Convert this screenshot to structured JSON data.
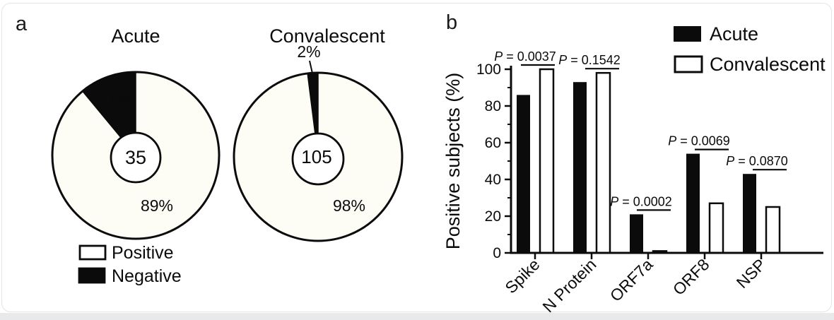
{
  "figure": {
    "panel_a_label": "a",
    "panel_b_label": "b",
    "panel_a_legend": [
      {
        "label": "Positive",
        "swatch": "#ffffff"
      },
      {
        "label": "Negative",
        "swatch": "#000000"
      }
    ]
  },
  "colors": {
    "ink": "#0b0b0b",
    "pie_fill": "#fdfcf5",
    "bar_acute": "#0b0b0b",
    "bar_convalescent": "#ffffff",
    "card_border": "#e3e4e6",
    "page_strip": "#e8e9eb"
  },
  "chart_data": [
    {
      "type": "pie",
      "title": "Acute",
      "center_label": "35",
      "slices": [
        {
          "label": "Positive",
          "value": 89,
          "pct_label": "89%",
          "color": "#fdfcf5"
        },
        {
          "label": "Negative",
          "value": 11,
          "pct_label": "11%",
          "color": "#0b0b0b"
        }
      ]
    },
    {
      "type": "pie",
      "title": "Convalescent",
      "center_label": "105",
      "slices": [
        {
          "label": "Positive",
          "value": 98,
          "pct_label": "98%",
          "color": "#fdfcf5"
        },
        {
          "label": "Negative",
          "value": 2,
          "pct_label": "2%",
          "color": "#0b0b0b"
        }
      ]
    },
    {
      "type": "bar",
      "ylabel": "Positive subjects (%)",
      "ylim": [
        0,
        100
      ],
      "yticks": [
        0,
        20,
        40,
        60,
        80,
        100
      ],
      "categories": [
        "Spike",
        "N Protein",
        "ORF7a",
        "ORF8",
        "NSP"
      ],
      "series": [
        {
          "name": "Acute",
          "values": [
            86,
            93,
            21,
            54,
            43
          ]
        },
        {
          "name": "Convalescent",
          "values": [
            100,
            98,
            1,
            27,
            25
          ]
        }
      ],
      "p_values": [
        {
          "text": "P = 0.0037",
          "number": "0.0037"
        },
        {
          "text": "P = 0.1542",
          "number": "0.1542"
        },
        {
          "text": "P = 0.0002",
          "number": "0.0002"
        },
        {
          "text": "P = 0.0069",
          "number": "0.0069"
        },
        {
          "text": "P = 0.0870",
          "number": "0.0870"
        }
      ],
      "legend_position": "top-right",
      "grid": false
    }
  ]
}
